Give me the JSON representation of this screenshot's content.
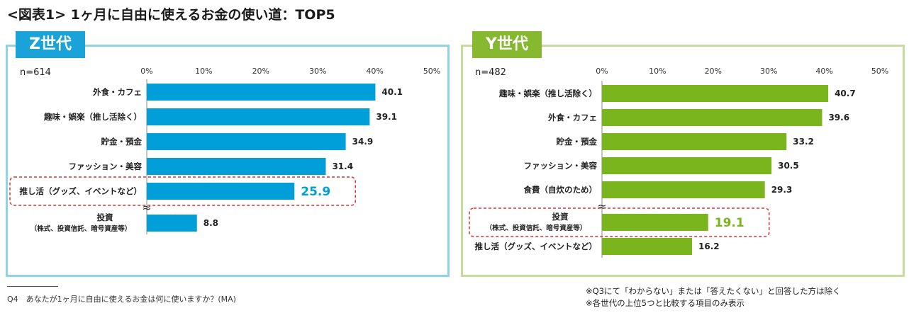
{
  "title": "<図表1> 1ヶ月に自由に使えるお金の使い道：TOP5",
  "colors": {
    "z_bar": "#009fd9",
    "y_bar": "#7ab51d",
    "z_highlight_text": "#009fd9",
    "y_highlight_text": "#7ab51d",
    "highlight_box": "#e03030"
  },
  "chart_data": [
    {
      "type": "bar",
      "orientation": "horizontal",
      "badge": "Z世代",
      "sample": "n=614",
      "xlim": [
        0,
        50
      ],
      "ticks": [
        "0%",
        "10%",
        "20%",
        "30%",
        "40%",
        "50%"
      ],
      "tick_values": [
        0,
        10,
        20,
        30,
        40,
        50
      ],
      "categories": [
        {
          "label": "外食・カフェ",
          "sub": ""
        },
        {
          "label": "趣味・娯楽（推し活除く）",
          "sub": ""
        },
        {
          "label": "貯金・預金",
          "sub": ""
        },
        {
          "label": "ファッション・美容",
          "sub": ""
        },
        {
          "label": "推し活（グッズ、イベントなど）",
          "sub": ""
        },
        {
          "label": "投資",
          "sub": "（株式、投資信託、暗号資産等）"
        }
      ],
      "values": [
        40.1,
        39.1,
        34.9,
        31.4,
        25.9,
        8.8
      ],
      "value_labels": [
        "40.1",
        "39.1",
        "34.9",
        "31.4",
        "25.9",
        "8.8"
      ],
      "highlight_index": 4,
      "break_after_index": 4,
      "break_symbol": "≈"
    },
    {
      "type": "bar",
      "orientation": "horizontal",
      "badge": "Y世代",
      "sample": "n=482",
      "xlim": [
        0,
        50
      ],
      "ticks": [
        "0%",
        "10%",
        "20%",
        "30%",
        "40%",
        "50%"
      ],
      "tick_values": [
        0,
        10,
        20,
        30,
        40,
        50
      ],
      "categories": [
        {
          "label": "趣味・娯楽（推し活除く）",
          "sub": ""
        },
        {
          "label": "外食・カフェ",
          "sub": ""
        },
        {
          "label": "貯金・預金",
          "sub": ""
        },
        {
          "label": "ファッション・美容",
          "sub": ""
        },
        {
          "label": "食費（自炊のため）",
          "sub": ""
        },
        {
          "label": "投資",
          "sub": "（株式、投資信託、暗号資産等）"
        },
        {
          "label": "推し活（グッズ、イベントなど）",
          "sub": ""
        }
      ],
      "values": [
        40.7,
        39.6,
        33.2,
        30.5,
        29.3,
        19.1,
        16.2
      ],
      "value_labels": [
        "40.7",
        "39.6",
        "33.2",
        "30.5",
        "29.3",
        "19.1",
        "16.2"
      ],
      "highlight_index": 5,
      "break_after_index": 4,
      "break_symbol": "≈"
    }
  ],
  "footnote_question": "Q4　あなたが1ヶ月に自由に使えるお金は何に使いますか？(MA)",
  "notes": [
    "※Q3にて「わからない」または「答えたくない」と回答した方は除く",
    "※各世代の上位5つと比較する項目のみ表示"
  ]
}
